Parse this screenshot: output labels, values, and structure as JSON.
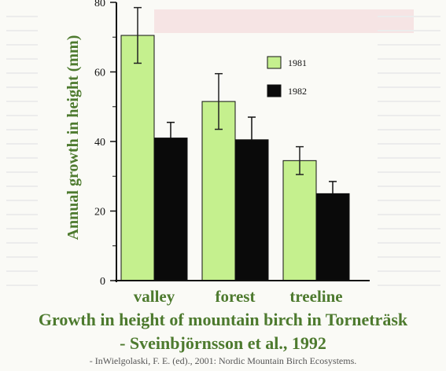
{
  "chart_data": {
    "type": "bar",
    "categories": [
      "valley",
      "forest",
      "treeline"
    ],
    "series": [
      {
        "name": "1981",
        "values": [
          70.5,
          51.5,
          34.5
        ],
        "error": [
          8,
          8,
          4
        ],
        "color": "#c5f08e"
      },
      {
        "name": "1982",
        "values": [
          41,
          40.5,
          25
        ],
        "error": [
          4.5,
          6.5,
          3.5
        ],
        "color": "#0a0a0a"
      }
    ],
    "ylabel": "Annual growth in height (mm)",
    "ylim": [
      0,
      80
    ],
    "yticks": [
      0,
      20,
      40,
      60,
      80
    ],
    "legend_position": "top-right",
    "grid": false
  },
  "caption": {
    "line1": "Growth in height of mountain birch in Torneträsk",
    "line2": "- Sveinbjörnsson et al., 1992",
    "source": "- InWielgolaski, F. E. (ed)., 2001: Nordic Mountain Birch Ecosystems."
  },
  "colors": {
    "label_green": "#4d7a2e",
    "axis": "#111111"
  }
}
